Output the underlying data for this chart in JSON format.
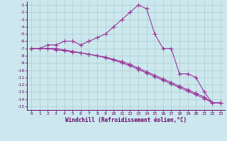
{
  "xlabel": "Windchill (Refroidissement éolien,°C)",
  "bg_color": "#cce8ee",
  "grid_color": "#aacccc",
  "line_color": "#993399",
  "xlim": [
    -0.5,
    23.5
  ],
  "ylim": [
    -15.5,
    -0.5
  ],
  "yticks": [
    -1,
    -2,
    -3,
    -4,
    -5,
    -6,
    -7,
    -8,
    -9,
    -10,
    -11,
    -12,
    -13,
    -14,
    -15
  ],
  "xticks": [
    0,
    1,
    2,
    3,
    4,
    5,
    6,
    7,
    8,
    9,
    10,
    11,
    12,
    13,
    14,
    15,
    16,
    17,
    18,
    19,
    20,
    21,
    22,
    23
  ],
  "line1_x": [
    0,
    1,
    2,
    3,
    4,
    5,
    6,
    7,
    8,
    9,
    10,
    11,
    12,
    13,
    14,
    15,
    16,
    17,
    18,
    19,
    20,
    21,
    22,
    23
  ],
  "line1_y": [
    -7,
    -7,
    -6.5,
    -6.5,
    -6,
    -6,
    -6.5,
    -6,
    -5.5,
    -5,
    -4,
    -3,
    -2,
    -1,
    -1.5,
    -5,
    -7,
    -7,
    -10.5,
    -10.5,
    -11,
    -13,
    -14.5,
    -14.5
  ],
  "line2_x": [
    0,
    2,
    3,
    4,
    5,
    6,
    7,
    8,
    9,
    10,
    11,
    12,
    13,
    14,
    15,
    16,
    17,
    18,
    19,
    20,
    21,
    22,
    23
  ],
  "line2_y": [
    -7,
    -7,
    -7.2,
    -7.3,
    -7.5,
    -7.6,
    -7.8,
    -8,
    -8.2,
    -8.5,
    -8.8,
    -9.2,
    -9.7,
    -10.2,
    -10.7,
    -11.2,
    -11.7,
    -12.2,
    -12.7,
    -13.2,
    -13.7,
    -14.5,
    -14.5
  ],
  "line3_x": [
    0,
    2,
    3,
    4,
    5,
    6,
    7,
    8,
    9,
    10,
    11,
    12,
    13,
    14,
    15,
    16,
    17,
    18,
    19,
    20,
    21,
    22,
    23
  ],
  "line3_y": [
    -7,
    -7,
    -7,
    -7.2,
    -7.4,
    -7.6,
    -7.8,
    -8.0,
    -8.3,
    -8.6,
    -9.0,
    -9.4,
    -9.9,
    -10.4,
    -10.9,
    -11.4,
    -11.9,
    -12.4,
    -12.9,
    -13.4,
    -13.9,
    -14.5,
    -14.5
  ]
}
